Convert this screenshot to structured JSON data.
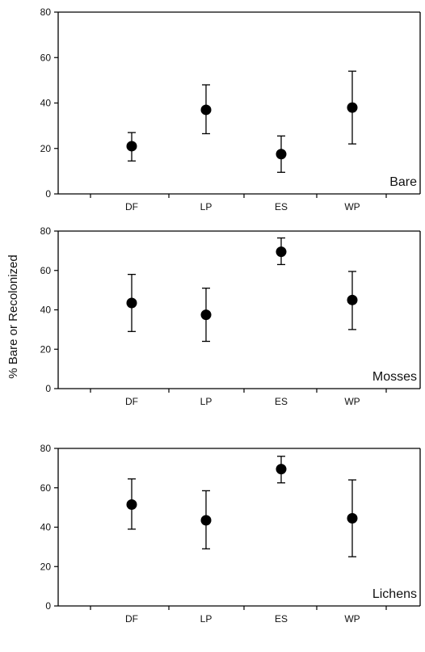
{
  "chart_data": {
    "type": "scatter",
    "ylabel": "% Bare or Recolonized",
    "categories": [
      "DF",
      "LP",
      "ES",
      "WP"
    ],
    "ylim": [
      0,
      80
    ],
    "yticks": [
      "0",
      "20",
      "40",
      "60",
      "80"
    ],
    "error_bars": true,
    "panels": [
      {
        "label": "Bare",
        "values": [
          21,
          37,
          17.5,
          38
        ],
        "lower": [
          14.5,
          26.5,
          9.5,
          22
        ],
        "upper": [
          27,
          48,
          25.5,
          54
        ]
      },
      {
        "label": "Mosses",
        "values": [
          43.5,
          37.5,
          69.5,
          45
        ],
        "lower": [
          29,
          24,
          63,
          30
        ],
        "upper": [
          58,
          51,
          76.5,
          59.5
        ]
      },
      {
        "label": "Lichens",
        "values": [
          51.5,
          43.5,
          69.5,
          44.5
        ],
        "lower": [
          39,
          29,
          62.5,
          25
        ],
        "upper": [
          64.5,
          58.5,
          76,
          64
        ]
      }
    ]
  }
}
